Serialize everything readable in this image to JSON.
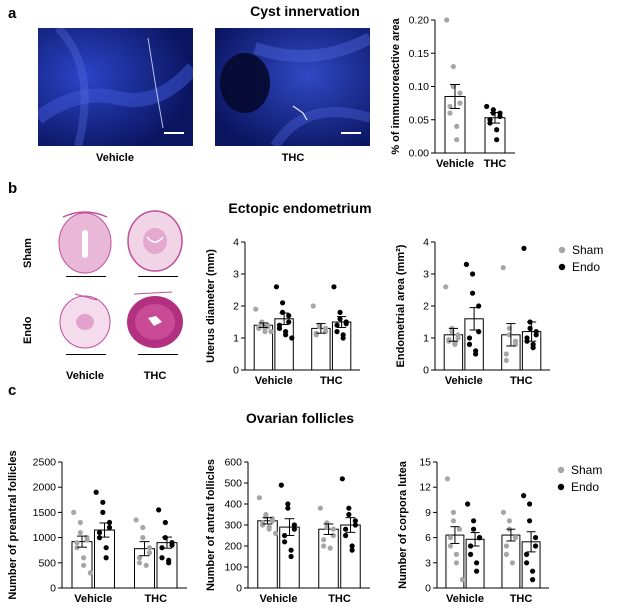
{
  "panels": {
    "a": {
      "label": "a",
      "title": "Cyst innervation",
      "image_captions": [
        "Vehicle",
        "THC"
      ]
    },
    "b": {
      "label": "b",
      "title": "Ectopic endometrium",
      "row_labels": [
        "Sham",
        "Endo"
      ],
      "image_captions": [
        "Vehicle",
        "THC"
      ]
    },
    "c": {
      "label": "c",
      "title": "Ovarian follicles"
    }
  },
  "colors": {
    "sham": "#a6a6a6",
    "endo": "#000000",
    "micro_bg": "#0b1a6b",
    "he_stain": "#c0509b"
  },
  "chart_data": [
    {
      "id": "cyst",
      "type": "bar",
      "ylabel": "% of immunoreactive area",
      "ylim": [
        0,
        0.2
      ],
      "yticks": [
        "0.00",
        "0.05",
        "0.10",
        "0.15",
        "0.20"
      ],
      "categories": [
        "Vehicle",
        "THC"
      ],
      "grouped": false,
      "series": [
        {
          "values": [
            0.085,
            0.053
          ],
          "sem": [
            0.018,
            0.008
          ],
          "points": [
            [
              0.2,
              0.13,
              0.1,
              0.09,
              0.075,
              0.07,
              0.06,
              0.04,
              0.02
            ],
            [
              0.07,
              0.065,
              0.06,
              0.06,
              0.055,
              0.05,
              0.045,
              0.035,
              0.02
            ]
          ]
        }
      ]
    },
    {
      "id": "uterus",
      "type": "bar",
      "ylabel": "Uterus diameter (mm)",
      "ylim": [
        0,
        4
      ],
      "yticks": [
        "0",
        "1",
        "2",
        "3",
        "4"
      ],
      "categories": [
        "Vehicle",
        "THC"
      ],
      "grouped": true,
      "series": [
        {
          "name": "Sham",
          "values": [
            1.4,
            1.3
          ],
          "sem": [
            0.07,
            0.15
          ],
          "points": [
            [
              1.9,
              1.5,
              1.45,
              1.4,
              1.35,
              1.35,
              1.3,
              1.3,
              1.2,
              1.2
            ],
            [
              2.0,
              1.4,
              1.35,
              1.3,
              1.2,
              1.15,
              1.1
            ]
          ]
        },
        {
          "name": "Endo",
          "values": [
            1.6,
            1.5
          ],
          "sem": [
            0.18,
            0.17
          ],
          "points": [
            [
              2.6,
              2.1,
              1.8,
              1.7,
              1.5,
              1.4,
              1.3,
              1.2,
              1.1,
              1.0
            ],
            [
              2.6,
              1.8,
              1.6,
              1.5,
              1.45,
              1.4,
              1.2,
              1.1,
              1.0
            ]
          ]
        }
      ]
    },
    {
      "id": "endometrial",
      "type": "bar",
      "ylabel": "Endometrial area (mm²)",
      "ylim": [
        0,
        4
      ],
      "yticks": [
        "0",
        "1",
        "2",
        "3",
        "4"
      ],
      "categories": [
        "Vehicle",
        "THC"
      ],
      "grouped": true,
      "legend": [
        "Sham",
        "Endo"
      ],
      "series": [
        {
          "name": "Sham",
          "values": [
            1.1,
            1.1
          ],
          "sem": [
            0.2,
            0.35
          ],
          "points": [
            [
              2.6,
              1.3,
              1.2,
              1.1,
              1.0,
              0.95,
              0.9,
              0.85,
              0.8
            ],
            [
              3.2,
              1.3,
              1.1,
              0.9,
              0.8,
              0.5,
              0.3
            ]
          ]
        },
        {
          "name": "Endo",
          "values": [
            1.6,
            1.2
          ],
          "sem": [
            0.35,
            0.3
          ],
          "points": [
            [
              3.3,
              3.0,
              2.4,
              2.0,
              1.2,
              1.0,
              0.8,
              0.6,
              0.5
            ],
            [
              3.8,
              1.5,
              1.3,
              1.2,
              1.1,
              1.0,
              0.9,
              0.8,
              0.7
            ]
          ]
        }
      ]
    },
    {
      "id": "preantral",
      "type": "bar",
      "ylabel": "Number of preantral follicles",
      "ylim": [
        0,
        2500
      ],
      "yticks": [
        "0",
        "500",
        "1000",
        "1500",
        "2000",
        "2500"
      ],
      "categories": [
        "Vehicle",
        "THC"
      ],
      "grouped": true,
      "series": [
        {
          "name": "Sham",
          "values": [
            920,
            780
          ],
          "sem": [
            110,
            140
          ],
          "points": [
            [
              1500,
              1300,
              1100,
              1000,
              950,
              900,
              800,
              600,
              450,
              300
            ],
            [
              1350,
              1200,
              1000,
              800,
              700,
              600,
              500,
              450
            ]
          ]
        },
        {
          "name": "Endo",
          "values": [
            1150,
            900
          ],
          "sem": [
            140,
            110
          ],
          "points": [
            [
              1900,
              1700,
              1500,
              1300,
              1200,
              1100,
              1000,
              800,
              600
            ],
            [
              1550,
              1300,
              1000,
              900,
              850,
              800,
              600,
              550,
              500
            ]
          ]
        }
      ]
    },
    {
      "id": "antral",
      "type": "bar",
      "ylabel": "Number of antral follicles",
      "ylim": [
        0,
        600
      ],
      "yticks": [
        "0",
        "100",
        "200",
        "300",
        "400",
        "500",
        "600"
      ],
      "categories": [
        "Vehicle",
        "THC"
      ],
      "grouped": true,
      "series": [
        {
          "name": "Sham",
          "values": [
            320,
            280
          ],
          "sem": [
            15,
            25
          ],
          "points": [
            [
              430,
              350,
              340,
              330,
              320,
              310,
              300,
              290,
              280,
              260
            ],
            [
              380,
              310,
              290,
              280,
              250,
              230,
              200,
              190
            ]
          ]
        },
        {
          "name": "Endo",
          "values": [
            290,
            300
          ],
          "sem": [
            40,
            35
          ],
          "points": [
            [
              490,
              400,
              380,
              300,
              280,
              250,
              220,
              180,
              150
            ],
            [
              520,
              380,
              350,
              320,
              300,
              280,
              250,
              200,
              180
            ]
          ]
        }
      ]
    },
    {
      "id": "corpora",
      "type": "bar",
      "ylabel": "Number of corpora lutea",
      "ylim": [
        0,
        15
      ],
      "yticks": [
        "0",
        "3",
        "6",
        "9",
        "12",
        "15"
      ],
      "categories": [
        "Vehicle",
        "THC"
      ],
      "grouped": true,
      "legend": [
        "Sham",
        "Endo"
      ],
      "series": [
        {
          "name": "Sham",
          "values": [
            6.3,
            6.3
          ],
          "sem": [
            1.0,
            0.7
          ],
          "points": [
            [
              13,
              9,
              8,
              7,
              7,
              6,
              5,
              4,
              3,
              1
            ],
            [
              9,
              8,
              7,
              6,
              6,
              5,
              4,
              3
            ]
          ]
        },
        {
          "name": "Endo",
          "values": [
            5.8,
            5.5
          ],
          "sem": [
            0.8,
            1.2
          ],
          "points": [
            [
              10,
              8,
              7,
              6,
              6,
              5,
              4,
              3,
              2
            ],
            [
              11,
              10,
              8,
              6,
              5,
              4,
              3,
              2,
              1
            ]
          ]
        }
      ]
    }
  ]
}
